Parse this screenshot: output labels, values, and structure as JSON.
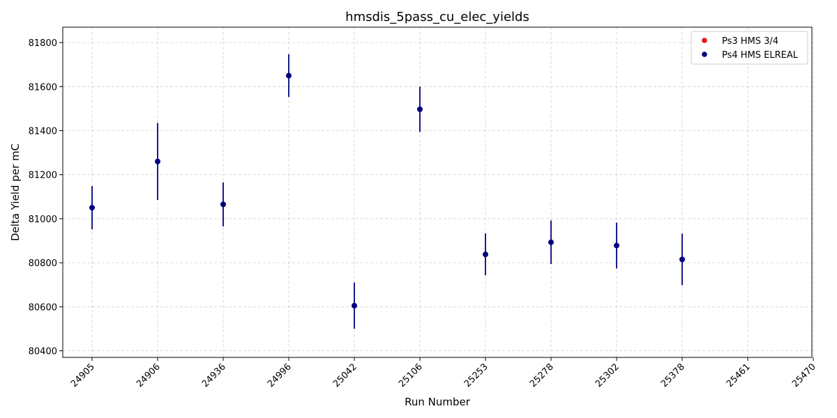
{
  "chart_data": {
    "type": "scatter",
    "title": "hmsdis_5pass_cu_elec_yields",
    "xlabel": "Run Number",
    "ylabel": "Delta Yield per mC",
    "categories": [
      "24905",
      "24906",
      "24936",
      "24996",
      "25042",
      "25106",
      "25253",
      "25278",
      "25302",
      "25378",
      "25461",
      "25470"
    ],
    "ylim": [
      80370,
      81870
    ],
    "yticks": [
      80400,
      80600,
      80800,
      81000,
      81200,
      81400,
      81600,
      81800
    ],
    "grid": true,
    "legend_position": "top-right",
    "series": [
      {
        "name": "Ps3 HMS 3/4",
        "color": "#e31a1c",
        "points": []
      },
      {
        "name": "Ps4 HMS ELREAL",
        "color": "#000080",
        "points": [
          {
            "x": "24905",
            "y": 81050,
            "err": 98
          },
          {
            "x": "24906",
            "y": 81260,
            "err": 175
          },
          {
            "x": "24936",
            "y": 81065,
            "err": 100
          },
          {
            "x": "24996",
            "y": 81650,
            "err": 97
          },
          {
            "x": "25042",
            "y": 80605,
            "err": 105
          },
          {
            "x": "25106",
            "y": 81497,
            "err": 103
          },
          {
            "x": "25253",
            "y": 80838,
            "err": 95
          },
          {
            "x": "25278",
            "y": 80893,
            "err": 99
          },
          {
            "x": "25302",
            "y": 80878,
            "err": 104
          },
          {
            "x": "25378",
            "y": 80815,
            "err": 117
          }
        ]
      }
    ]
  }
}
